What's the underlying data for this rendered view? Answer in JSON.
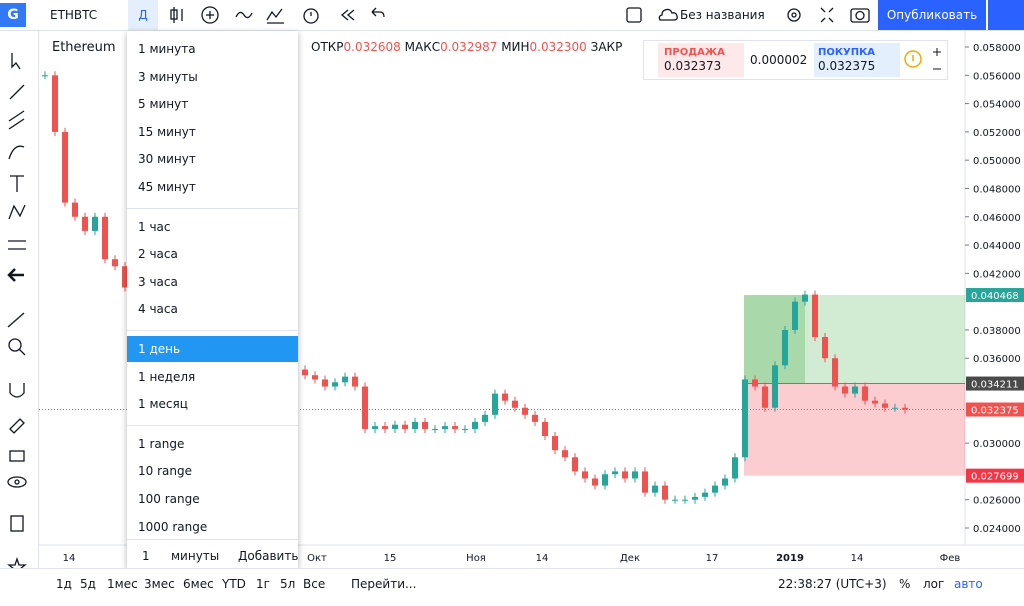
{
  "toolbar": {
    "symbol": "ETHBTC",
    "interval": "Д",
    "layout_name": "Без названия",
    "publish": "Опубликовать"
  },
  "legend": {
    "name": "Ethereum",
    "open_label": "ОТКР",
    "open": "0.032608",
    "high_label": "МАКС",
    "high": "0.032987",
    "low_label": "МИН",
    "low": "0.032300",
    "close_label": "ЗАКР"
  },
  "trade": {
    "sell_label": "ПРОДАЖА",
    "sell": "0.032373",
    "spread": "0.000002",
    "buy_label": "ПОКУПКА",
    "buy": "0.032375"
  },
  "interval_menu": {
    "groups": [
      [
        "1 минута",
        "3 минуты",
        "5 минут",
        "15 минут",
        "30 минут",
        "45 минут"
      ],
      [
        "1 час",
        "2 часа",
        "3 часа",
        "4 часа"
      ],
      [
        "1 день",
        "1 неделя",
        "1 месяц"
      ],
      [
        "1 range",
        "10 range",
        "100 range",
        "1000 range"
      ]
    ],
    "selected": "1 день",
    "custom_value": "1",
    "custom_unit": "минуты",
    "add": "Добавить"
  },
  "chart": {
    "price_ticks": [
      {
        "value": 0.058,
        "label": "0.058000"
      },
      {
        "value": 0.056,
        "label": "0.056000"
      },
      {
        "value": 0.054,
        "label": "0.054000"
      },
      {
        "value": 0.052,
        "label": "0.052000"
      },
      {
        "value": 0.05,
        "label": "0.050000"
      },
      {
        "value": 0.048,
        "label": "0.048000"
      },
      {
        "value": 0.046,
        "label": "0.046000"
      },
      {
        "value": 0.044,
        "label": "0.044000"
      },
      {
        "value": 0.042,
        "label": "0.042000"
      },
      {
        "value": 0.038,
        "label": "0.038000"
      },
      {
        "value": 0.036,
        "label": "0.036000"
      },
      {
        "value": 0.03,
        "label": "0.030000"
      },
      {
        "value": 0.026,
        "label": "0.026000"
      },
      {
        "value": 0.024,
        "label": "0.024000"
      }
    ],
    "ylim": [
      0.024,
      0.058
    ],
    "badges": [
      {
        "value": 0.040468,
        "label": "0.040468",
        "color": "#26a69a"
      },
      {
        "value": 0.034211,
        "label": "0.034211",
        "color": "#4a4a4a"
      },
      {
        "value": 0.032375,
        "label": "0.032375",
        "color": "#ef5350"
      },
      {
        "value": 0.027699,
        "label": "0.027699",
        "color": "#f23645"
      }
    ],
    "time_ticks": [
      "14",
      "Окт",
      "15",
      "Ноя",
      "14",
      "Дек",
      "17",
      "2019",
      "14",
      "Фев"
    ],
    "closes": [
      0.056,
      0.052,
      0.047,
      0.046,
      0.045,
      0.046,
      0.043,
      0.0425,
      0.041,
      0.0405,
      0.04,
      0.0395,
      0.039,
      0.0385,
      0.038,
      0.0375,
      0.037,
      0.037,
      0.0365,
      0.036,
      0.036,
      0.0355,
      0.0355,
      0.035,
      0.035,
      0.0352,
      0.0348,
      0.0345,
      0.034,
      0.0343,
      0.0347,
      0.034,
      0.031,
      0.0312,
      0.031,
      0.0313,
      0.031,
      0.0315,
      0.031,
      0.031,
      0.0312,
      0.031,
      0.031,
      0.0315,
      0.032,
      0.0335,
      0.033,
      0.0325,
      0.032,
      0.0315,
      0.0305,
      0.0295,
      0.029,
      0.028,
      0.0275,
      0.027,
      0.0278,
      0.028,
      0.0275,
      0.028,
      0.0265,
      0.027,
      0.026,
      0.026,
      0.026,
      0.0262,
      0.0265,
      0.027,
      0.0275,
      0.029,
      0.0345,
      0.034,
      0.0325,
      0.0355,
      0.038,
      0.04,
      0.0405,
      0.0375,
      0.036,
      0.034,
      0.0335,
      0.034,
      0.033,
      0.0328,
      0.0325,
      0.0325,
      0.03237
    ]
  },
  "bottom": {
    "ranges": [
      "1д",
      "5д",
      "1мес",
      "3мес",
      "6мес",
      "YTD",
      "1г",
      "5л",
      "Все"
    ],
    "goto": "Перейти...",
    "time": "22:38:27 (UTC+3)",
    "percent": "%",
    "log": "лог",
    "auto": "авто"
  }
}
